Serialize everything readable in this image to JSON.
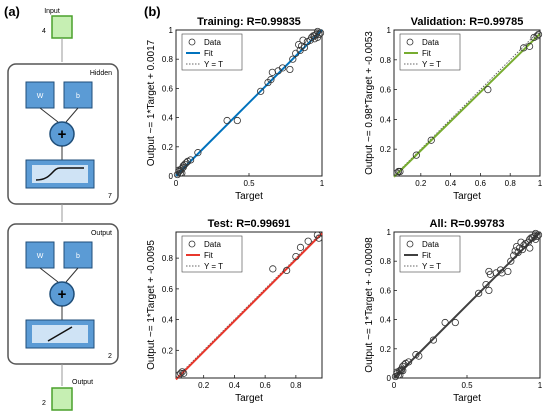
{
  "panel_labels": {
    "a": "(a)",
    "b": "(b)"
  },
  "network": {
    "input_label": "Input",
    "input_size": "4",
    "hidden_title": "Hidden",
    "hidden_size": "7",
    "output_title": "Output",
    "output_size": "2",
    "output_label": "Output",
    "output_node_size": "2",
    "weight_label": "W",
    "bias_label": "b",
    "sum_symbol": "+",
    "colors": {
      "box": "#5b9bd5",
      "box_border": "#1f4e79",
      "io": "#c6efb3",
      "io_border": "#4aa02c"
    }
  },
  "chart_data": [
    {
      "type": "scatter",
      "title": "Training: R=0.99835",
      "xlabel": "Target",
      "ylabel": "Output ~= 1*Target + 0.0017",
      "xlim": [
        0,
        1
      ],
      "ylim": [
        0,
        1
      ],
      "xticks": [
        "0",
        "0.5",
        "1"
      ],
      "yticks": [
        "0",
        "0.2",
        "0.4",
        "0.6",
        "0.8",
        "1"
      ],
      "fit_color": "#0072bd",
      "fit": {
        "slope": 1,
        "intercept": 0.0017
      },
      "legend": [
        "Data",
        "Fit",
        "Y = T"
      ],
      "points": [
        [
          0.01,
          0.01
        ],
        [
          0.02,
          0.03
        ],
        [
          0.03,
          0.02
        ],
        [
          0.04,
          0.05
        ],
        [
          0.05,
          0.06
        ],
        [
          0.06,
          0.08
        ],
        [
          0.07,
          0.09
        ],
        [
          0.08,
          0.1
        ],
        [
          0.05,
          0.07
        ],
        [
          0.03,
          0.04
        ],
        [
          0.1,
          0.11
        ],
        [
          0.15,
          0.16
        ],
        [
          0.35,
          0.38
        ],
        [
          0.42,
          0.38
        ],
        [
          0.58,
          0.58
        ],
        [
          0.63,
          0.64
        ],
        [
          0.65,
          0.66
        ],
        [
          0.66,
          0.71
        ],
        [
          0.7,
          0.72
        ],
        [
          0.73,
          0.74
        ],
        [
          0.78,
          0.73
        ],
        [
          0.8,
          0.8
        ],
        [
          0.82,
          0.84
        ],
        [
          0.85,
          0.86
        ],
        [
          0.84,
          0.9
        ],
        [
          0.86,
          0.89
        ],
        [
          0.88,
          0.88
        ],
        [
          0.87,
          0.93
        ],
        [
          0.9,
          0.92
        ],
        [
          0.92,
          0.93
        ],
        [
          0.93,
          0.95
        ],
        [
          0.95,
          0.96
        ],
        [
          0.96,
          0.97
        ],
        [
          0.97,
          0.95
        ],
        [
          0.98,
          0.97
        ],
        [
          0.99,
          0.98
        ],
        [
          0.97,
          0.99
        ],
        [
          0.95,
          0.94
        ],
        [
          0.94,
          0.96
        ],
        [
          0.02,
          0.04
        ],
        [
          0.04,
          0.02
        ]
      ]
    },
    {
      "type": "scatter",
      "title": "Validation: R=0.99785",
      "xlabel": "Target",
      "ylabel": "Output ~= 0.98*Target + -0.0053",
      "xlim": [
        0.02,
        1
      ],
      "ylim": [
        0.02,
        1
      ],
      "xticks": [
        "0.2",
        "0.4",
        "0.6",
        "0.8",
        "1"
      ],
      "xtick_vals": [
        0.2,
        0.4,
        0.6,
        0.8,
        1
      ],
      "yticks": [
        "0.2",
        "0.4",
        "0.6",
        "0.8",
        "1"
      ],
      "ytick_vals": [
        0.2,
        0.4,
        0.6,
        0.8,
        1
      ],
      "fit_color": "#77ac30",
      "fit": {
        "slope": 0.98,
        "intercept": -0.0053
      },
      "legend": [
        "Data",
        "Fit",
        "Y = T"
      ],
      "points": [
        [
          0.04,
          0.04
        ],
        [
          0.05,
          0.05
        ],
        [
          0.06,
          0.05
        ],
        [
          0.17,
          0.16
        ],
        [
          0.27,
          0.26
        ],
        [
          0.65,
          0.6
        ],
        [
          0.89,
          0.88
        ],
        [
          0.93,
          0.89
        ],
        [
          0.96,
          0.95
        ],
        [
          0.98,
          0.96
        ],
        [
          0.99,
          0.97
        ]
      ]
    },
    {
      "type": "scatter",
      "title": "Test: R=0.99691",
      "xlabel": "Target",
      "ylabel": "Output ~= 1*Target + -0.0095",
      "xlim": [
        0.02,
        0.97
      ],
      "ylim": [
        0.02,
        0.97
      ],
      "xticks": [
        "0.2",
        "0.4",
        "0.6",
        "0.8"
      ],
      "xtick_vals": [
        0.2,
        0.4,
        0.6,
        0.8
      ],
      "yticks": [
        "0.2",
        "0.4",
        "0.6",
        "0.8"
      ],
      "ytick_vals": [
        0.2,
        0.4,
        0.6,
        0.8
      ],
      "fit_color": "#e8372c",
      "fit": {
        "slope": 1,
        "intercept": -0.0095
      },
      "legend": [
        "Data",
        "Fit",
        "Y = T"
      ],
      "points": [
        [
          0.04,
          0.04
        ],
        [
          0.05,
          0.05
        ],
        [
          0.06,
          0.06
        ],
        [
          0.07,
          0.05
        ],
        [
          0.65,
          0.73
        ],
        [
          0.74,
          0.72
        ],
        [
          0.8,
          0.81
        ],
        [
          0.83,
          0.87
        ],
        [
          0.88,
          0.91
        ],
        [
          0.94,
          0.95
        ],
        [
          0.95,
          0.93
        ]
      ]
    },
    {
      "type": "scatter",
      "title": "All: R=0.99783",
      "xlabel": "Target",
      "ylabel": "Output ~= 1*Target + -0.00098",
      "xlim": [
        0,
        1
      ],
      "ylim": [
        0,
        1
      ],
      "xticks": [
        "0",
        "0.5",
        "1"
      ],
      "yticks": [
        "0",
        "0.2",
        "0.4",
        "0.6",
        "0.8",
        "1"
      ],
      "fit_color": "#404040",
      "fit": {
        "slope": 1,
        "intercept": -0.00098
      },
      "legend": [
        "Data",
        "Fit",
        "Y = T"
      ],
      "points": [
        [
          0.01,
          0.01
        ],
        [
          0.02,
          0.03
        ],
        [
          0.03,
          0.02
        ],
        [
          0.04,
          0.05
        ],
        [
          0.05,
          0.06
        ],
        [
          0.06,
          0.08
        ],
        [
          0.07,
          0.09
        ],
        [
          0.08,
          0.1
        ],
        [
          0.1,
          0.11
        ],
        [
          0.15,
          0.16
        ],
        [
          0.17,
          0.15
        ],
        [
          0.35,
          0.38
        ],
        [
          0.42,
          0.38
        ],
        [
          0.58,
          0.58
        ],
        [
          0.63,
          0.64
        ],
        [
          0.65,
          0.6
        ],
        [
          0.65,
          0.73
        ],
        [
          0.66,
          0.71
        ],
        [
          0.7,
          0.72
        ],
        [
          0.73,
          0.74
        ],
        [
          0.74,
          0.72
        ],
        [
          0.78,
          0.73
        ],
        [
          0.8,
          0.8
        ],
        [
          0.82,
          0.84
        ],
        [
          0.83,
          0.87
        ],
        [
          0.85,
          0.86
        ],
        [
          0.84,
          0.9
        ],
        [
          0.86,
          0.89
        ],
        [
          0.88,
          0.88
        ],
        [
          0.89,
          0.91
        ],
        [
          0.87,
          0.93
        ],
        [
          0.9,
          0.92
        ],
        [
          0.92,
          0.93
        ],
        [
          0.93,
          0.89
        ],
        [
          0.93,
          0.95
        ],
        [
          0.95,
          0.96
        ],
        [
          0.96,
          0.97
        ],
        [
          0.97,
          0.95
        ],
        [
          0.98,
          0.97
        ],
        [
          0.99,
          0.98
        ],
        [
          0.97,
          0.99
        ],
        [
          0.94,
          0.96
        ],
        [
          0.02,
          0.04
        ],
        [
          0.04,
          0.02
        ],
        [
          0.05,
          0.05
        ],
        [
          0.06,
          0.05
        ],
        [
          0.27,
          0.26
        ]
      ]
    }
  ]
}
